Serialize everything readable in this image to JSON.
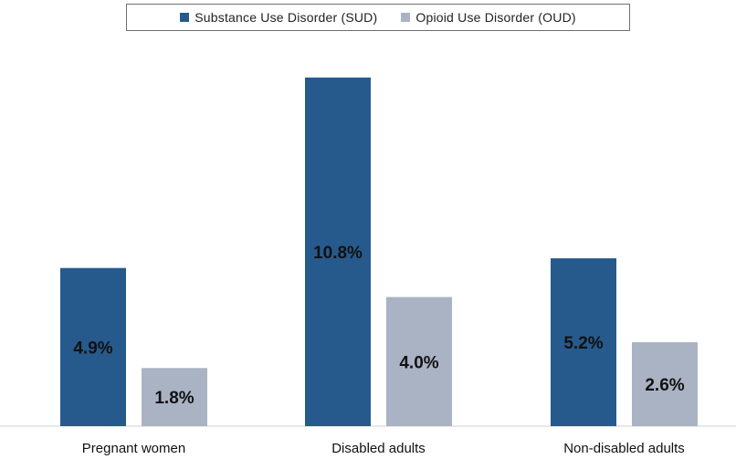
{
  "chart_data": {
    "type": "bar",
    "categories": [
      "Pregnant women",
      "Disabled adults",
      "Non-disabled adults"
    ],
    "series": [
      {
        "name": "Substance Use Disorder (SUD)",
        "values": [
          4.9,
          10.8,
          5.2
        ],
        "labels": [
          "4.9%",
          "10.8%",
          "5.2%"
        ],
        "color": "#265a8c"
      },
      {
        "name": "Opioid Use Disorder (OUD)",
        "values": [
          1.8,
          4.0,
          2.6
        ],
        "labels": [
          "1.8%",
          "4.0%",
          "2.6%"
        ],
        "color": "#aab3c3"
      }
    ],
    "title": "",
    "xlabel": "",
    "ylabel": "",
    "ylim": [
      0,
      12
    ],
    "grid": false,
    "legend_position": "top"
  }
}
